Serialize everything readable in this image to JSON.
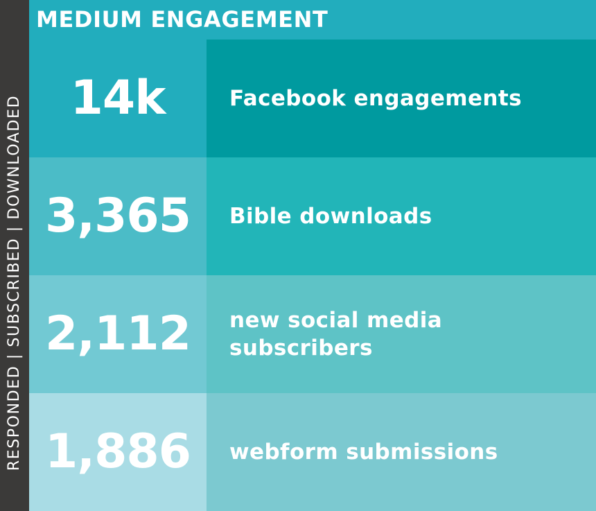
{
  "header": {
    "title": "MEDIUM ENGAGEMENT"
  },
  "side_label": "RESPONDED | SUBSCRIBED | DOWNLOADED",
  "metrics": [
    {
      "value": "14k",
      "label_lines": [
        "Facebook engagements"
      ]
    },
    {
      "value": "3,365",
      "label_lines": [
        "Bible downloads"
      ]
    },
    {
      "value": "2,112",
      "label_lines": [
        "new social media",
        "subscribers"
      ]
    },
    {
      "value": "1,886",
      "label_lines": [
        "webform submissions"
      ]
    }
  ],
  "colors": {
    "side_strip": "#3b3a39",
    "header": "#22adbd",
    "row1_number": "#22adbd",
    "row1_label": "#009a9f",
    "row2_number": "#4bbcc7",
    "row2_label": "#22b5b8",
    "row3_number": "#72c9d3",
    "row3_label": "#5ec3c6",
    "row4_number": "#a9dce5",
    "row4_label": "#7cc9d0",
    "text": "#ffffff"
  }
}
